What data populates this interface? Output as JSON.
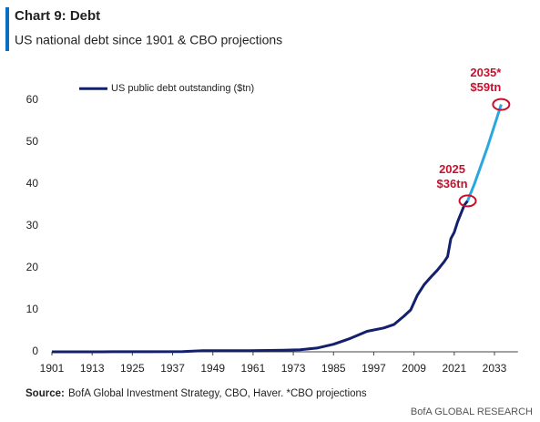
{
  "chart_data": {
    "type": "line",
    "title": "Chart 9: Debt",
    "subtitle": "US national debt since 1901 & CBO projections",
    "series": [
      {
        "name": "US public debt outstanding ($tn)",
        "color": "#13206b",
        "x": [
          1901,
          1916,
          1919,
          1930,
          1940,
          1946,
          1960,
          1970,
          1975,
          1980,
          1985,
          1990,
          1995,
          2000,
          2003,
          2006,
          2008,
          2010,
          2012,
          2014,
          2016,
          2018,
          2019,
          2020,
          2021,
          2022,
          2023,
          2024,
          2025
        ],
        "values": [
          0.001,
          0.01,
          0.03,
          0.02,
          0.05,
          0.27,
          0.29,
          0.37,
          0.5,
          0.9,
          1.8,
          3.2,
          4.9,
          5.7,
          6.5,
          8.5,
          10,
          13.5,
          16,
          17.8,
          19.5,
          21.5,
          22.7,
          27,
          28.5,
          31,
          33,
          35,
          36
        ]
      },
      {
        "color": "#2aa7df",
        "x": [
          2025,
          2027,
          2029,
          2031,
          2033,
          2035
        ],
        "values": [
          36,
          40,
          44.5,
          49,
          54,
          59
        ]
      }
    ],
    "annotations": [
      [
        "2025",
        "$36tn"
      ],
      [
        "2035*",
        "$59tn"
      ]
    ],
    "annotation_color": "#c8102e",
    "xlim": [
      1901,
      2040
    ],
    "xticks": [
      1901,
      1913,
      1925,
      1937,
      1949,
      1961,
      1973,
      1985,
      1997,
      2009,
      2021,
      2033
    ],
    "ylim": [
      0,
      63
    ],
    "yticks": [
      0,
      10,
      20,
      30,
      40,
      50,
      60
    ],
    "grid": false,
    "legend": "top-left",
    "source_label": "Source:",
    "source": "BofA Global Investment Strategy, CBO, Haver. *CBO projections",
    "footer": "BofA GLOBAL RESEARCH"
  }
}
